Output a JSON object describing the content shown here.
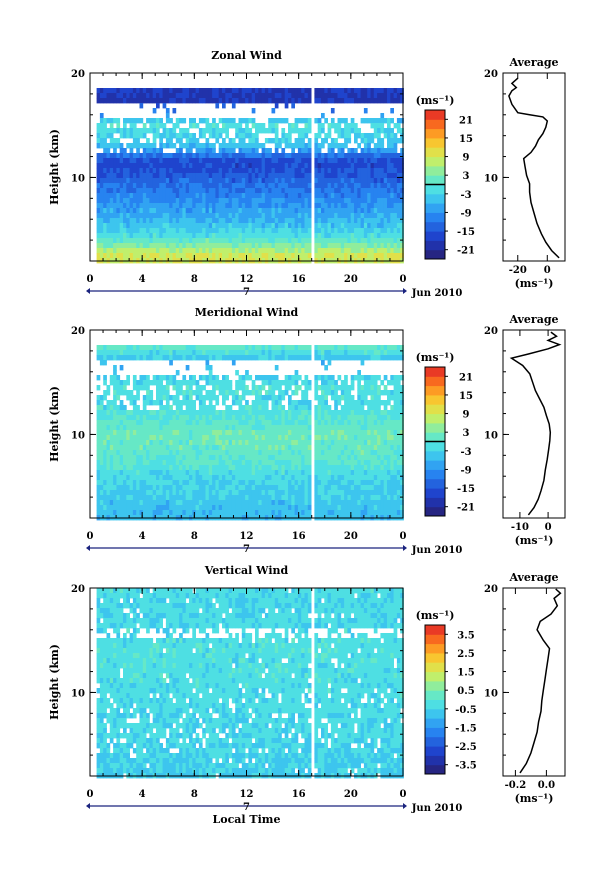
{
  "figure": {
    "date_label": "Jun 2010",
    "day_label": "7",
    "xlabel": "Local Time",
    "ylabel": "Height (km)",
    "average_title": "Average",
    "colorbar_unit": "(ms⁻¹)",
    "profile_xlabel": "(ms⁻¹)"
  },
  "chart_data": [
    {
      "type": "heatmap",
      "title": "Zonal Wind",
      "ylabel": "Height (km)",
      "x_ticks": [
        "0",
        "4",
        "8",
        "12",
        "16",
        "20",
        "0"
      ],
      "xlim": [
        0,
        24
      ],
      "y_ticks": [
        "20",
        "10"
      ],
      "ylim": [
        2,
        20
      ],
      "colorbar": {
        "unit": "(ms⁻¹)",
        "ticks": [
          "21",
          "15",
          "9",
          "3",
          "-3",
          "-9",
          "-15",
          "-21"
        ],
        "range": [
          -24,
          24
        ]
      },
      "field_profile": [
        {
          "h": 2.5,
          "v": 9
        },
        {
          "h": 3.5,
          "v": 4
        },
        {
          "h": 4.5,
          "v": -2
        },
        {
          "h": 6,
          "v": -6
        },
        {
          "h": 8,
          "v": -10
        },
        {
          "h": 10,
          "v": -14
        },
        {
          "h": 11.5,
          "v": -17
        },
        {
          "h": 13,
          "v": -5
        },
        {
          "h": 14,
          "v": -3
        },
        {
          "h": 15,
          "v": -1
        },
        {
          "h": 17.5,
          "v": -20
        },
        {
          "h": 18,
          "v": -18
        }
      ],
      "profile": {
        "title": "Average",
        "x_ticks": [
          "-20",
          "0"
        ],
        "xlim": [
          -30,
          12
        ],
        "y_ticks": [
          "20",
          "10"
        ],
        "ylim": [
          2,
          20
        ],
        "xlabel": "(ms⁻¹)",
        "points": [
          {
            "x": 8,
            "y": 2.3
          },
          {
            "x": 3,
            "y": 3.0
          },
          {
            "x": -1,
            "y": 3.8
          },
          {
            "x": -4,
            "y": 4.6
          },
          {
            "x": -7,
            "y": 5.6
          },
          {
            "x": -9,
            "y": 6.6
          },
          {
            "x": -11,
            "y": 7.6
          },
          {
            "x": -12,
            "y": 8.6
          },
          {
            "x": -12,
            "y": 9.4
          },
          {
            "x": -14,
            "y": 10.2
          },
          {
            "x": -15,
            "y": 11.0
          },
          {
            "x": -16,
            "y": 11.8
          },
          {
            "x": -11,
            "y": 12.4
          },
          {
            "x": -8,
            "y": 13.0
          },
          {
            "x": -6,
            "y": 13.6
          },
          {
            "x": -3,
            "y": 14.2
          },
          {
            "x": -1,
            "y": 14.8
          },
          {
            "x": 0,
            "y": 15.4
          },
          {
            "x": -3,
            "y": 15.8
          },
          {
            "x": -12,
            "y": 16.0
          },
          {
            "x": -20,
            "y": 16.2
          },
          {
            "x": -24,
            "y": 17.0
          },
          {
            "x": -26,
            "y": 17.8
          },
          {
            "x": -24,
            "y": 18.3
          },
          {
            "x": -21,
            "y": 18.6
          },
          {
            "x": -24,
            "y": 19.0
          },
          {
            "x": -20,
            "y": 19.5
          }
        ]
      }
    },
    {
      "type": "heatmap",
      "title": "Meridional Wind",
      "ylabel": "Height (km)",
      "x_ticks": [
        "0",
        "4",
        "8",
        "12",
        "16",
        "20",
        "0"
      ],
      "xlim": [
        0,
        24
      ],
      "y_ticks": [
        "20",
        "10"
      ],
      "ylim": [
        2,
        20
      ],
      "colorbar": {
        "unit": "(ms⁻¹)",
        "ticks": [
          "21",
          "15",
          "9",
          "3",
          "-3",
          "-9",
          "-15",
          "-21"
        ],
        "range": [
          -24,
          24
        ]
      },
      "field_profile": [
        {
          "h": 2.5,
          "v": -5
        },
        {
          "h": 4,
          "v": -4
        },
        {
          "h": 6,
          "v": -2
        },
        {
          "h": 8,
          "v": 1
        },
        {
          "h": 10,
          "v": 2
        },
        {
          "h": 11.5,
          "v": 0
        },
        {
          "h": 13,
          "v": -2
        },
        {
          "h": 14.5,
          "v": -1
        },
        {
          "h": 16,
          "v": -4
        },
        {
          "h": 17,
          "v": -6
        },
        {
          "h": 18.5,
          "v": 2
        }
      ],
      "profile": {
        "title": "Average",
        "x_ticks": [
          "-10",
          "0"
        ],
        "xlim": [
          -16,
          6
        ],
        "y_ticks": [
          "20",
          "10"
        ],
        "ylim": [
          2,
          20
        ],
        "xlabel": "(ms⁻¹)",
        "points": [
          {
            "x": -7,
            "y": 2.3
          },
          {
            "x": -5,
            "y": 3.0
          },
          {
            "x": -3.5,
            "y": 3.8
          },
          {
            "x": -2.5,
            "y": 4.6
          },
          {
            "x": -1.5,
            "y": 5.6
          },
          {
            "x": -1,
            "y": 6.6
          },
          {
            "x": -0.3,
            "y": 7.6
          },
          {
            "x": 0.2,
            "y": 8.6
          },
          {
            "x": 0.6,
            "y": 9.4
          },
          {
            "x": 0.8,
            "y": 10.2
          },
          {
            "x": 0.4,
            "y": 11.0
          },
          {
            "x": -0.6,
            "y": 11.8
          },
          {
            "x": -1.5,
            "y": 12.6
          },
          {
            "x": -3,
            "y": 13.4
          },
          {
            "x": -4.5,
            "y": 14.2
          },
          {
            "x": -5.5,
            "y": 15.0
          },
          {
            "x": -6.5,
            "y": 15.8
          },
          {
            "x": -9,
            "y": 16.6
          },
          {
            "x": -13,
            "y": 17.3
          },
          {
            "x": -7,
            "y": 17.7
          },
          {
            "x": 0,
            "y": 18.2
          },
          {
            "x": 4,
            "y": 18.6
          },
          {
            "x": 0,
            "y": 19.0
          },
          {
            "x": 3,
            "y": 19.4
          },
          {
            "x": 1,
            "y": 19.8
          }
        ]
      }
    },
    {
      "type": "heatmap",
      "title": "Vertical Wind",
      "ylabel": "Height (km)",
      "xlabel": "Local Time",
      "x_ticks": [
        "0",
        "4",
        "8",
        "12",
        "16",
        "20",
        "0"
      ],
      "xlim": [
        0,
        24
      ],
      "y_ticks": [
        "20",
        "10"
      ],
      "ylim": [
        2,
        20
      ],
      "colorbar": {
        "unit": "(ms⁻¹)",
        "ticks": [
          "3.5",
          "2.5",
          "1.5",
          "0.5",
          "-0.5",
          "-1.5",
          "-2.5",
          "-3.5"
        ],
        "range": [
          -4,
          4
        ]
      },
      "field_profile": [
        {
          "h": 2.5,
          "v": -0.6
        },
        {
          "h": 6,
          "v": -0.4
        },
        {
          "h": 10,
          "v": -0.3
        },
        {
          "h": 14,
          "v": -0.2
        },
        {
          "h": 18,
          "v": -0.4
        },
        {
          "h": 20,
          "v": -0.3
        }
      ],
      "profile": {
        "title": "Average",
        "x_ticks": [
          "-0.2",
          "0.0"
        ],
        "xlim": [
          -0.28,
          0.12
        ],
        "y_ticks": [
          "20",
          "10"
        ],
        "ylim": [
          2,
          20
        ],
        "xlabel": "(ms⁻¹)",
        "points": [
          {
            "x": -0.17,
            "y": 2.3
          },
          {
            "x": -0.13,
            "y": 3.2
          },
          {
            "x": -0.1,
            "y": 4.2
          },
          {
            "x": -0.08,
            "y": 5.2
          },
          {
            "x": -0.06,
            "y": 6.2
          },
          {
            "x": -0.05,
            "y": 7.2
          },
          {
            "x": -0.035,
            "y": 8.2
          },
          {
            "x": -0.03,
            "y": 9.2
          },
          {
            "x": -0.02,
            "y": 10.2
          },
          {
            "x": -0.01,
            "y": 11.2
          },
          {
            "x": 0.0,
            "y": 12.2
          },
          {
            "x": 0.01,
            "y": 13.2
          },
          {
            "x": 0.02,
            "y": 14.2
          },
          {
            "x": -0.02,
            "y": 15.0
          },
          {
            "x": -0.06,
            "y": 16.0
          },
          {
            "x": -0.04,
            "y": 16.8
          },
          {
            "x": 0.03,
            "y": 17.5
          },
          {
            "x": 0.07,
            "y": 18.3
          },
          {
            "x": 0.05,
            "y": 19.0
          },
          {
            "x": 0.09,
            "y": 19.5
          },
          {
            "x": 0.06,
            "y": 19.9
          }
        ]
      }
    }
  ]
}
